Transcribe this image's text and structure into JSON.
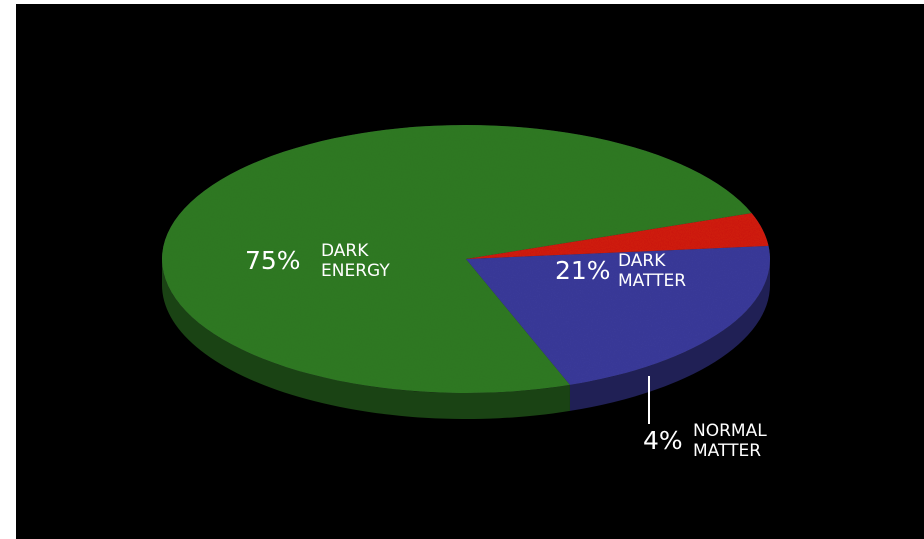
{
  "chart_data": {
    "type": "pie",
    "title": "",
    "slices": [
      {
        "label_lines": [
          "DARK",
          "ENERGY"
        ],
        "value": 75,
        "value_label": "75%",
        "color": "#2f7a24"
      },
      {
        "label_lines": [
          "DARK",
          "MATTER"
        ],
        "value": 21,
        "value_label": "21%",
        "color": "#3a3a9a"
      },
      {
        "label_lines": [
          "NORMAL",
          "MATTER"
        ],
        "value": 4,
        "value_label": "4%",
        "color": "#d11a10"
      }
    ],
    "style": "3D tilted pie",
    "background": "#000000",
    "legend": "none"
  }
}
